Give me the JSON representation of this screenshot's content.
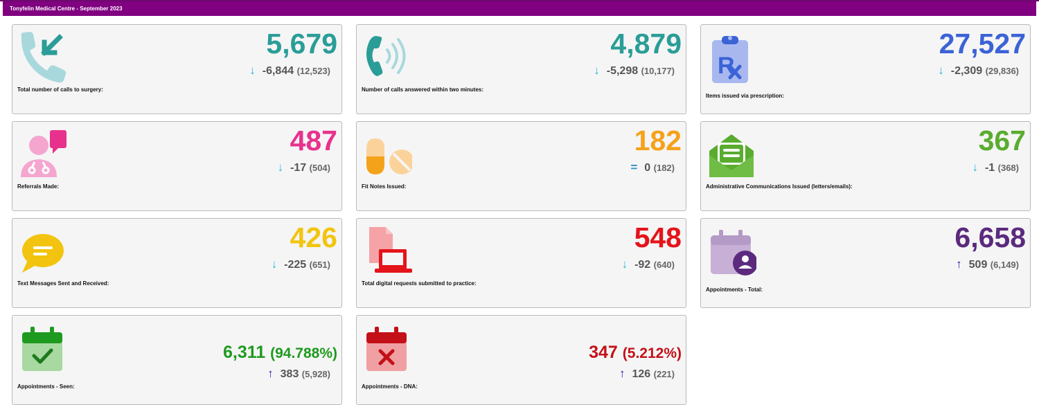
{
  "header": {
    "title": "Tonyfelin Medical Centre - September 2023"
  },
  "colors": {
    "header_bg": "#800080",
    "down_arrow": "#2bb5d8",
    "up_arrow": "#1a1a9e",
    "equal": "#2b8fc4"
  },
  "cards": [
    {
      "label": "Total number of calls to surgery:",
      "value": "5,679",
      "change": "-6,844",
      "previous": "(12,523)",
      "direction": "down",
      "icon": "incoming-call-icon",
      "color": "#2a9d97"
    },
    {
      "label": "Number of calls answered within two minutes:",
      "value": "4,879",
      "change": "-5,298",
      "previous": "(10,177)",
      "direction": "down",
      "icon": "phone-ringing-icon",
      "color": "#2a9d97"
    },
    {
      "label": "Items issued via prescription:",
      "value": "27,527",
      "change": "-2,309",
      "previous": "(29,836)",
      "direction": "down",
      "icon": "prescription-icon",
      "color": "#3b63d6"
    },
    {
      "label": "Referrals Made:",
      "value": "487",
      "change": "-17",
      "previous": "(504)",
      "direction": "down",
      "icon": "doctor-chat-icon",
      "color": "#e8318c"
    },
    {
      "label": "Fit Notes Issued:",
      "value": "182",
      "change": "0",
      "previous": "(182)",
      "direction": "equal",
      "icon": "pills-icon",
      "color": "#f5a21b"
    },
    {
      "label": "Administrative Communications Issued (letters/emails):",
      "value": "367",
      "change": "-1",
      "previous": "(368)",
      "direction": "down",
      "icon": "open-envelope-icon",
      "color": "#5aac2f"
    },
    {
      "label": "Text Messages Sent and Received:",
      "value": "426",
      "change": "-225",
      "previous": "(651)",
      "direction": "down",
      "icon": "speech-bubble-icon",
      "color": "#f2c40f"
    },
    {
      "label": "Total digital requests submitted to practice:",
      "value": "548",
      "change": "-92",
      "previous": "(640)",
      "direction": "down",
      "icon": "laptop-document-icon",
      "color": "#e4141b"
    },
    {
      "label": "Appointments - Total:",
      "value": "6,658",
      "change": "509",
      "previous": "(6,149)",
      "direction": "up",
      "icon": "calendar-person-icon",
      "color": "#5b2a7e"
    },
    {
      "label": "Appointments - Seen:",
      "value": "6,311",
      "percent": "(94.788%)",
      "change": "383",
      "previous": "(5,928)",
      "direction": "up",
      "icon": "calendar-check-icon",
      "color": "#1e9a1e"
    },
    {
      "label": "Appointments - DNA:",
      "value": "347",
      "percent": "(5.212%)",
      "change": "126",
      "previous": "(221)",
      "direction": "up",
      "icon": "calendar-cross-icon",
      "color": "#c41018"
    }
  ]
}
